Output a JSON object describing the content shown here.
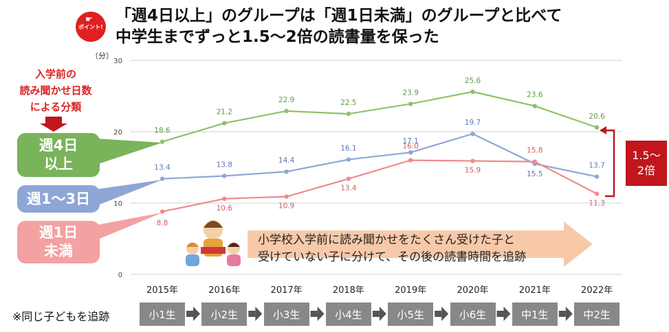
{
  "header": {
    "badge_label": "ポイント!",
    "title_line1": "「週4日以上」のグループは「週1日未満」のグループと比べて",
    "title_line2": "中学生までずっと1.5～2倍の読書量を保った"
  },
  "side_note": {
    "line1": "入学前の",
    "line2": "読み聞かせ日数",
    "line3": "による分類"
  },
  "callouts": {
    "weekly4_line1": "週4日",
    "weekly4_line2": "以上",
    "weekly13": "週1～3日",
    "weekly1_line1": "週1日",
    "weekly1_line2": "未満"
  },
  "ratio_label": {
    "line1": "1.5～",
    "line2": "2倍"
  },
  "banner": {
    "line1": "小学校入学前に読み聞かせをたくさん受けた子と",
    "line2": "受けていない子に分けて、その後の読書時間を追跡"
  },
  "tracking": {
    "note": "※同じ子どもを追跡",
    "grades": [
      "小1生",
      "小2生",
      "小3生",
      "小4生",
      "小5生",
      "小6生",
      "中1生",
      "中2生"
    ]
  },
  "colors": {
    "green": "#8dc26a",
    "blue": "#8ea6d6",
    "red": "#ee8b8b",
    "accent": "#c0161c",
    "banner": "#f7c9a8"
  },
  "chart_data": {
    "type": "line",
    "unit_label": "（分）",
    "categories": [
      "2015年",
      "2016年",
      "2017年",
      "2018年",
      "2019年",
      "2020年",
      "2021年",
      "2022年"
    ],
    "ylim": [
      0,
      30
    ],
    "yticks": [
      0,
      10,
      20,
      30
    ],
    "series": [
      {
        "name": "週4日以上",
        "color": "#8dc26a",
        "values": [
          18.6,
          21.2,
          22.9,
          22.5,
          23.9,
          25.6,
          23.6,
          20.6
        ],
        "labels": [
          "18.6",
          "21.2",
          "22.9",
          "22.5",
          "23.9",
          "25.6",
          "23.6",
          "20.6"
        ]
      },
      {
        "name": "週1～3日",
        "color": "#8ea6d6",
        "values": [
          13.4,
          13.8,
          14.4,
          16.1,
          17.1,
          19.7,
          15.5,
          13.7
        ],
        "labels": [
          "13.4",
          "13.8",
          "14.4",
          "16.1",
          "17.1",
          "19.7",
          "15.5",
          "13.7"
        ]
      },
      {
        "name": "週1日未満",
        "color": "#ee8b8b",
        "values": [
          8.8,
          10.6,
          10.9,
          13.4,
          16.0,
          15.9,
          15.8,
          11.3
        ],
        "labels": [
          "8.8",
          "10.6",
          "10.9",
          "13.4",
          "16.0",
          "15.9",
          "15.8",
          "11.3"
        ]
      }
    ]
  }
}
